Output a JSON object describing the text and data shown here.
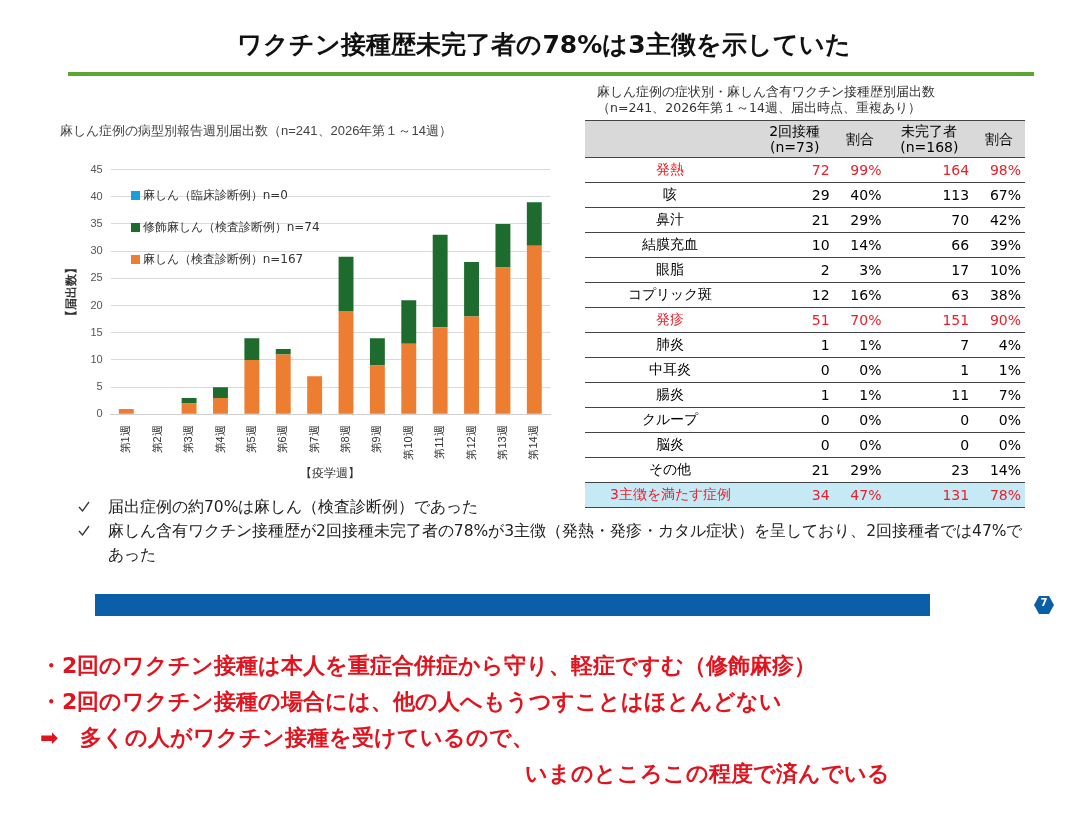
{
  "chart_data": [
    {
      "type": "other",
      "title": "ワクチン接種歴未完了者の78%は3主徴を示していた"
    },
    {
      "type": "bar",
      "title": "麻しん症例の病型別報告週別届出数（n=241、2026年第１～14週）",
      "xlabel": "【疫学週】",
      "ylabel": "【届出数】",
      "categories": [
        "第1週",
        "第2週",
        "第3週",
        "第4週",
        "第5週",
        "第6週",
        "第7週",
        "第8週",
        "第9週",
        "第10週",
        "第11週",
        "第12週",
        "第13週",
        "第14週"
      ],
      "stacked": true,
      "ylim": [
        0,
        45
      ],
      "yticks": [
        0,
        5,
        10,
        15,
        20,
        25,
        30,
        35,
        40,
        45
      ],
      "grid": "y",
      "legend": "top left",
      "series": [
        {
          "name": "麻しん（検査診断例）n=167",
          "color": "#ed7d31",
          "values": [
            1,
            0,
            2,
            3,
            10,
            11,
            7,
            19,
            9,
            13,
            16,
            18,
            27,
            31
          ]
        },
        {
          "name": "修飾麻しん（検査診断例）n=74",
          "color": "#1e6b2e",
          "values": [
            0,
            0,
            1,
            2,
            4,
            1,
            0,
            10,
            5,
            8,
            17,
            10,
            8,
            8
          ]
        },
        {
          "name": "麻しん（臨床診断例）n=0",
          "color": "#1a9fd8",
          "values": [
            0,
            0,
            0,
            0,
            0,
            0,
            0,
            0,
            0,
            0,
            0,
            0,
            0,
            0
          ]
        }
      ]
    },
    {
      "type": "other",
      "title": "麻しん症例の症状別・麻しん含有ワクチン接種歴別届出数",
      "subtitle": "（n=241、2026年第１～14週、届出時点、重複あり）",
      "categories": [
        "2回接種\n(n=73)",
        "割合",
        "未完了者\n(n=168)",
        "割合"
      ],
      "y_categories": [
        "発熱",
        "咳",
        "鼻汁",
        "結膜充血",
        "眼脂",
        "コプリック斑",
        "発疹",
        "肺炎",
        "中耳炎",
        "腸炎",
        "クループ",
        "脳炎",
        "その他",
        "3主徴を満たす症例"
      ],
      "cell_labels": [
        [
          "72",
          "99%",
          "164",
          "98%"
        ],
        [
          "29",
          "40%",
          "113",
          "67%"
        ],
        [
          "21",
          "29%",
          "70",
          "42%"
        ],
        [
          "10",
          "14%",
          "66",
          "39%"
        ],
        [
          "2",
          "3%",
          "17",
          "10%"
        ],
        [
          "12",
          "16%",
          "63",
          "38%"
        ],
        [
          "51",
          "70%",
          "151",
          "90%"
        ],
        [
          "1",
          "1%",
          "7",
          "4%"
        ],
        [
          "0",
          "0%",
          "1",
          "1%"
        ],
        [
          "1",
          "1%",
          "11",
          "7%"
        ],
        [
          "0",
          "0%",
          "0",
          "0%"
        ],
        [
          "0",
          "0%",
          "0",
          "0%"
        ],
        [
          "21",
          "29%",
          "23",
          "14%"
        ],
        [
          "34",
          "47%",
          "131",
          "78%"
        ]
      ]
    },
    {
      "type": "other",
      "annotations": [
        "届出症例の約70%は麻しん（検査診断例）であった",
        "麻しん含有ワクチン接種歴が2回接種未完了者の78%が3主徴（発熱・発疹・カタル症状）を呈しており、2回接種者では47%であった"
      ]
    },
    {
      "type": "other",
      "annotations": [
        "・2回のワクチン接種は本人を重症合併症から守り、軽症ですむ（修飾麻疹）",
        "・2回のワクチン接種の場合には、他の人へもうつすことはほとんどない",
        "➡　多くの人がワクチン接種を受けているので、",
        "いまのところこの程度で済んでいる"
      ]
    },
    {
      "type": "other",
      "annotations": [
        "7"
      ]
    }
  ]
}
